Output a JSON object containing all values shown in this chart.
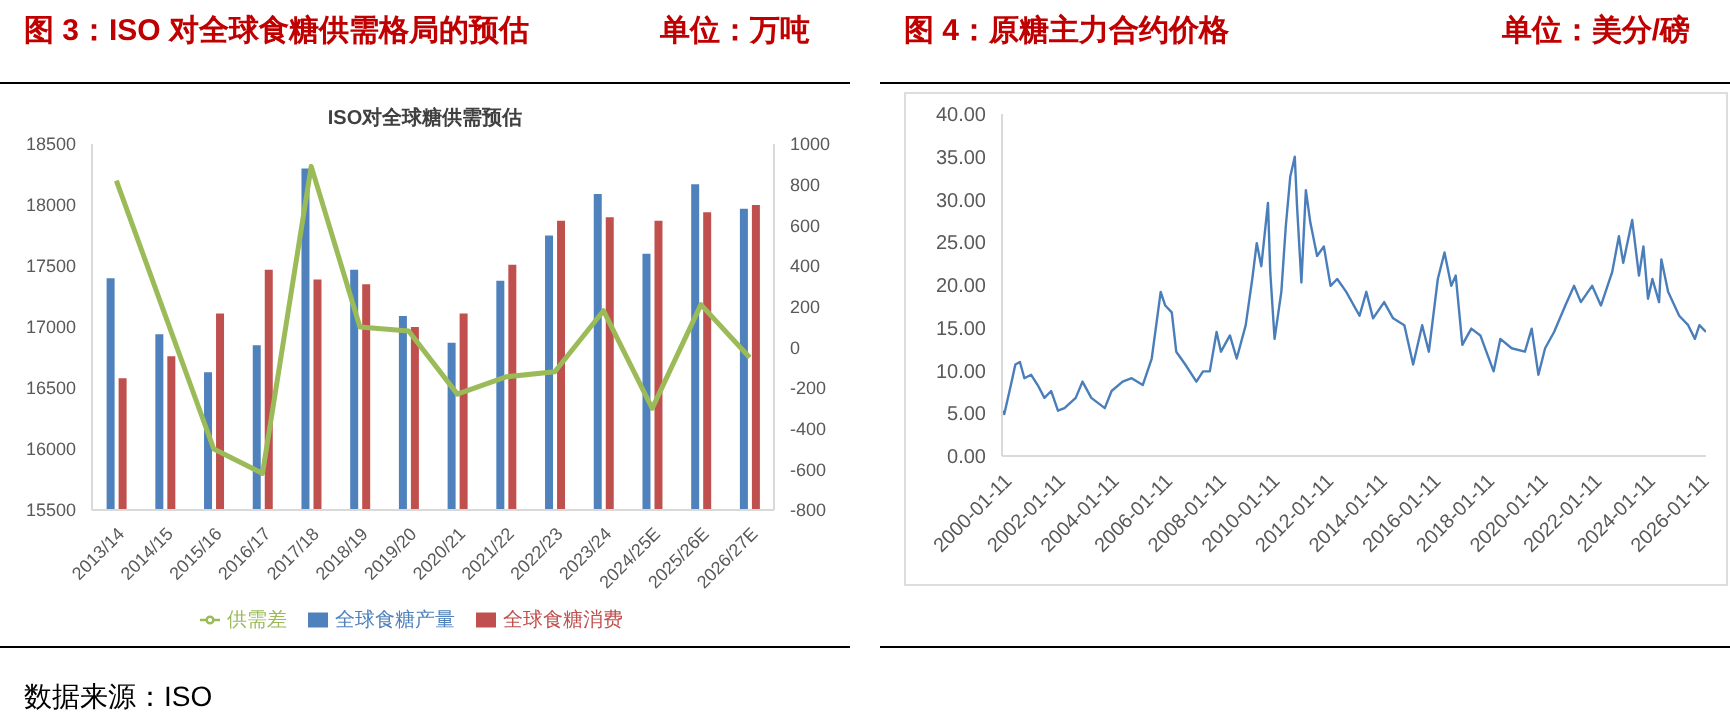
{
  "chart_data": [
    {
      "type": "bar",
      "title": "图 3：ISO 对全球食糖供需格局的预估",
      "subtitle": "单位：万吨",
      "annotations": [
        "ISO对全球糖供需预估",
        "数据来源：ISO"
      ],
      "categories": [
        "2013/14",
        "2014/15",
        "2015/16",
        "2016/17",
        "2017/18",
        "2018/19",
        "2019/20",
        "2020/21",
        "2021/22",
        "2022/23",
        "2023/24",
        "2024/25E",
        "2025/26E",
        "2026/27E"
      ],
      "series": [
        {
          "name": "全球食糖产量",
          "color": "#4f81bd",
          "values": [
            17400,
            16940,
            16630,
            16850,
            18300,
            17470,
            17090,
            16870,
            17380,
            17750,
            18090,
            17600,
            18170,
            17970
          ]
        },
        {
          "name": "全球食糖消费",
          "color": "#c0504d",
          "values": [
            16580,
            16760,
            17110,
            17470,
            17390,
            17350,
            17000,
            17110,
            17510,
            17870,
            17900,
            17870,
            17940,
            18000
          ]
        },
        {
          "name": "供需差",
          "type": "line",
          "axis": "y2",
          "color": "#9bbb59",
          "values": [
            820,
            160,
            -500,
            -620,
            890,
            100,
            80,
            -230,
            -145,
            -120,
            180,
            -300,
            210,
            -50
          ]
        }
      ],
      "ylim": [
        15500,
        18500
      ],
      "yticks": [
        15500,
        16000,
        16500,
        17000,
        17500,
        18000,
        18500
      ],
      "y2lim": [
        -800,
        1000
      ],
      "y2ticks": [
        -800,
        -600,
        -400,
        -200,
        0,
        200,
        400,
        600,
        800,
        1000
      ],
      "legend": "bottom",
      "grid": false,
      "marker": "none"
    },
    {
      "type": "line",
      "title": "图 4：原糖主力合约价格",
      "subtitle": "单位：美分/磅",
      "x": [
        "2000-01",
        "2000-02",
        "2000-05",
        "2000-07",
        "2000-09",
        "2000-11",
        "2001-02",
        "2001-05",
        "2001-08",
        "2001-11",
        "2002-02",
        "2002-05",
        "2002-10",
        "2003-01",
        "2003-05",
        "2003-11",
        "2004-02",
        "2004-07",
        "2004-11",
        "2005-04",
        "2005-08",
        "2005-12",
        "2006-02",
        "2006-05",
        "2006-07",
        "2006-11",
        "2007-04",
        "2007-07",
        "2007-10",
        "2008-01",
        "2008-03",
        "2008-07",
        "2008-10",
        "2009-02",
        "2009-05",
        "2009-07",
        "2009-09",
        "2009-12",
        "2010-01",
        "2010-03",
        "2010-06",
        "2010-08",
        "2010-10",
        "2010-12",
        "2011-01",
        "2011-03",
        "2011-05",
        "2011-07",
        "2011-10",
        "2012-01",
        "2012-04",
        "2012-07",
        "2012-11",
        "2013-05",
        "2013-08",
        "2013-11",
        "2014-04",
        "2014-08",
        "2015-01",
        "2015-05",
        "2015-09",
        "2015-12",
        "2016-04",
        "2016-07",
        "2016-10",
        "2016-12",
        "2017-03",
        "2017-07",
        "2017-11",
        "2018-05",
        "2018-08",
        "2019-01",
        "2019-07",
        "2019-10",
        "2020-01",
        "2020-04",
        "2020-08",
        "2021-01",
        "2021-05",
        "2021-08",
        "2022-01",
        "2022-05",
        "2022-10",
        "2023-01",
        "2023-03",
        "2023-07",
        "2023-10",
        "2023-12",
        "2024-02",
        "2024-04",
        "2024-07",
        "2024-08",
        "2024-11",
        "2025-04",
        "2025-08",
        "2025-11",
        "2026-01",
        "2026-04"
      ],
      "series": [
        {
          "color": "#4a7ebb",
          "values": [
            5.3,
            4.9,
            8.3,
            10.7,
            11.0,
            9.1,
            9.5,
            8.3,
            6.8,
            7.6,
            5.3,
            5.6,
            6.8,
            8.7,
            6.8,
            5.6,
            7.6,
            8.7,
            9.1,
            8.3,
            11.4,
            19.2,
            17.6,
            16.8,
            12.2,
            10.7,
            8.7,
            9.9,
            9.9,
            14.5,
            12.2,
            14.1,
            11.4,
            15.3,
            20.7,
            24.9,
            22.2,
            29.6,
            21.5,
            13.7,
            19.2,
            26.9,
            32.7,
            35.0,
            29.2,
            20.3,
            31.1,
            27.3,
            23.4,
            24.5,
            19.9,
            20.7,
            19.2,
            16.4,
            19.2,
            16.1,
            18.0,
            16.1,
            15.3,
            10.7,
            15.3,
            12.2,
            20.7,
            23.8,
            19.9,
            21.1,
            13.0,
            14.9,
            14.1,
            9.9,
            13.7,
            12.6,
            12.2,
            14.9,
            9.5,
            12.6,
            14.5,
            17.6,
            19.9,
            18.0,
            19.9,
            17.6,
            21.5,
            25.7,
            22.6,
            27.6,
            21.1,
            24.5,
            18.4,
            20.7,
            18.0,
            23.0,
            19.2,
            16.4,
            15.3,
            13.7,
            15.3,
            14.5
          ]
        }
      ],
      "xlim": [
        "2000-01",
        "2026-04"
      ],
      "xticks": [
        "2000-01-11",
        "2002-01-11",
        "2004-01-11",
        "2006-01-11",
        "2008-01-11",
        "2010-01-11",
        "2012-01-11",
        "2014-01-11",
        "2016-01-11",
        "2018-01-11",
        "2020-01-11",
        "2022-01-11",
        "2024-01-11",
        "2026-01-11"
      ],
      "ylim": [
        0,
        40
      ],
      "yticks": [
        {
          "value": 0,
          "label": "0.00"
        },
        {
          "value": 5,
          "label": "5.00"
        },
        {
          "value": 10,
          "label": "10.00"
        },
        {
          "value": 15,
          "label": "15.00"
        },
        {
          "value": 20,
          "label": "20.00"
        },
        {
          "value": 25,
          "label": "25.00"
        },
        {
          "value": 30,
          "label": "30.00"
        },
        {
          "value": 35,
          "label": "35.00"
        },
        {
          "value": 40,
          "label": "40.00"
        }
      ],
      "legend": false,
      "grid": false,
      "marker": "none"
    }
  ]
}
